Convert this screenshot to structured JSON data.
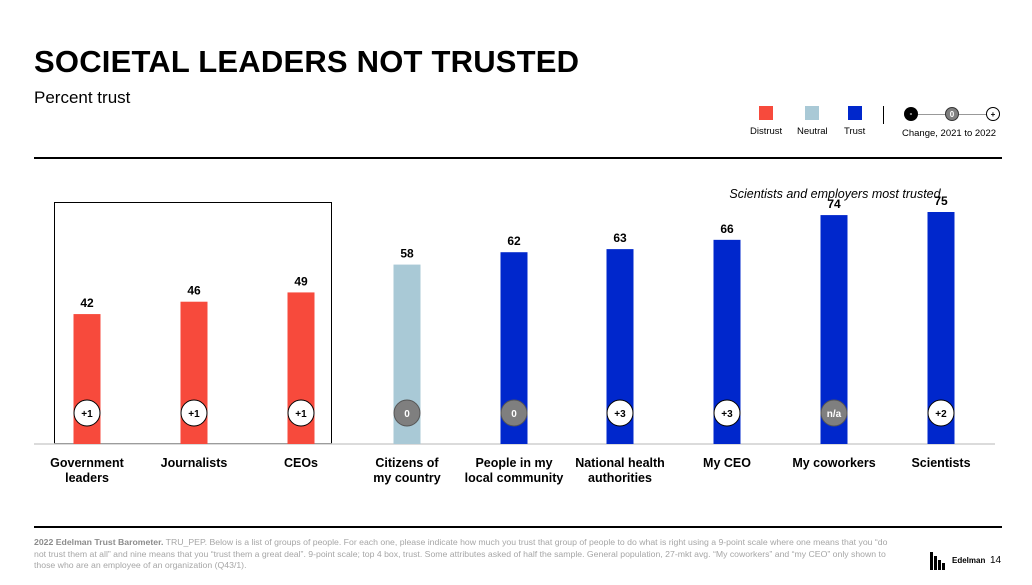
{
  "header": {
    "title": "SOCIETAL LEADERS NOT TRUSTED",
    "subtitle": "Percent trust"
  },
  "legend": {
    "distrust": "Distrust",
    "neutral": "Neutral",
    "trust": "Trust",
    "change_label": "Change, 2021 to 2022",
    "change_icons": [
      "-",
      "0",
      "+"
    ]
  },
  "colors": {
    "distrust": "#f74a3c",
    "neutral": "#a9c9d6",
    "trust": "#0027cc",
    "change_zero": "#7f7f7f"
  },
  "annotation": "Scientists and employers most trusted",
  "chart_data": {
    "type": "bar",
    "categories": [
      "Government leaders",
      "Journalists",
      "CEOs",
      "Citizens of my country",
      "People in my local community",
      "National health authorities",
      "My CEO",
      "My coworkers",
      "Scientists"
    ],
    "category_lines": [
      [
        "Government",
        "leaders"
      ],
      [
        "Journalists"
      ],
      [
        "CEOs"
      ],
      [
        "Citizens of",
        "my country"
      ],
      [
        "People in my",
        "local community"
      ],
      [
        "National health",
        "authorities"
      ],
      [
        "My CEO"
      ],
      [
        "My coworkers"
      ],
      [
        "Scientists"
      ]
    ],
    "values": [
      42,
      46,
      49,
      58,
      62,
      63,
      66,
      74,
      75
    ],
    "value_labels": [
      "42",
      "46",
      "49",
      "58",
      "62",
      "63",
      "66",
      "74",
      "75"
    ],
    "classification": [
      "distrust",
      "distrust",
      "distrust",
      "neutral",
      "trust",
      "trust",
      "trust",
      "trust",
      "trust"
    ],
    "change_2021_to_2022": [
      "+1",
      "+1",
      "+1",
      "0",
      "0",
      "+3",
      "+3",
      "n/a",
      "+2"
    ],
    "ylim": [
      0,
      90
    ],
    "grid": false,
    "legend_position": "top-right"
  },
  "footer": {
    "source_bold": "2022 Edelman Trust Barometer.",
    "source_text": " TRU_PEP. Below is a list of groups of people. For each one, please indicate how much you trust that group of people to do what is right using a 9-point scale where one means that you “do not trust them at all” and nine means that you “trust them a great deal”. 9-point scale; top 4 box, trust. Some attributes asked of half the sample. General population, 27-mkt avg. “My coworkers” and “my CEO” only shown to those who are an employee of an organization (Q43/1).",
    "brand": "Edelman",
    "page_number": "14"
  }
}
